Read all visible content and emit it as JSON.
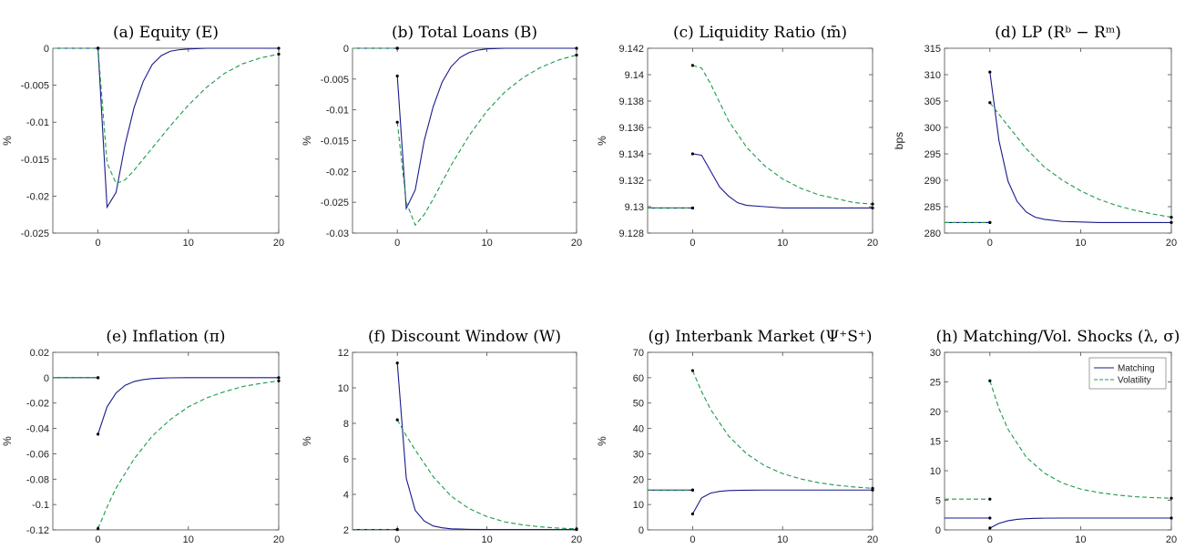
{
  "colors": {
    "matching": "#1a1a8c",
    "volatility": "#1c9a4a",
    "axis": "#4a4a4a",
    "marker": "#000000"
  },
  "legend": {
    "location": "top-right",
    "panel_index": 7
  },
  "chart_data": [
    {
      "type": "line",
      "title": "(a) Equity (E)",
      "ylabel": "%",
      "xlim": [
        -5,
        20
      ],
      "ylim": [
        -0.025,
        0
      ],
      "xticks": [
        0,
        10,
        20
      ],
      "yticks": [
        0,
        -0.005,
        -0.01,
        -0.015,
        -0.02,
        -0.025
      ],
      "ytick_labels": [
        "0",
        "-0.005",
        "-0.01",
        "-0.015",
        "-0.02",
        "-0.025"
      ],
      "series": [
        {
          "name": "Matching",
          "style": "solid",
          "pre": 0,
          "x": [
            0,
            1,
            2,
            3,
            4,
            5,
            6,
            7,
            8,
            9,
            10,
            12,
            14,
            16,
            18,
            20
          ],
          "y": [
            0,
            -0.0215,
            -0.0195,
            -0.013,
            -0.008,
            -0.0045,
            -0.0022,
            -0.001,
            -0.0004,
            -0.0002,
            -0.0001,
            0,
            0,
            0,
            0,
            0
          ]
        },
        {
          "name": "Volatility",
          "style": "dashed",
          "pre": 0,
          "x": [
            0,
            1,
            2,
            3,
            4,
            6,
            8,
            10,
            12,
            14,
            16,
            18,
            20
          ],
          "y": [
            0,
            -0.0155,
            -0.0183,
            -0.0178,
            -0.0165,
            -0.0135,
            -0.0105,
            -0.0077,
            -0.0053,
            -0.0034,
            -0.0021,
            -0.0013,
            -0.0008
          ]
        }
      ]
    },
    {
      "type": "line",
      "title": "(b) Total Loans (B)",
      "ylabel": "%",
      "xlim": [
        -5,
        20
      ],
      "ylim": [
        -0.03,
        0
      ],
      "xticks": [
        0,
        10,
        20
      ],
      "yticks": [
        0,
        -0.005,
        -0.01,
        -0.015,
        -0.02,
        -0.025,
        -0.03
      ],
      "ytick_labels": [
        "0",
        "-0.005",
        "-0.01",
        "-0.015",
        "-0.02",
        "-0.025",
        "-0.03"
      ],
      "series": [
        {
          "name": "Matching",
          "style": "solid",
          "pre": 0,
          "x": [
            0,
            1,
            2,
            3,
            4,
            5,
            6,
            7,
            8,
            9,
            10,
            12,
            14,
            16,
            18,
            20
          ],
          "y": [
            -0.0045,
            -0.026,
            -0.023,
            -0.015,
            -0.0095,
            -0.0055,
            -0.003,
            -0.0015,
            -0.0007,
            -0.0003,
            -0.0001,
            0,
            0,
            0,
            0,
            0
          ]
        },
        {
          "name": "Volatility",
          "style": "dashed",
          "pre": 0,
          "x": [
            0,
            1,
            2,
            3,
            4,
            6,
            8,
            10,
            12,
            14,
            16,
            18,
            20
          ],
          "y": [
            -0.012,
            -0.025,
            -0.0287,
            -0.027,
            -0.0245,
            -0.019,
            -0.0142,
            -0.0102,
            -0.0071,
            -0.0048,
            -0.0031,
            -0.0019,
            -0.0011
          ]
        }
      ]
    },
    {
      "type": "line",
      "title": "(c) Liquidity Ratio (m̄)",
      "ylabel": "%",
      "xlim": [
        -5,
        20
      ],
      "ylim": [
        9.128,
        9.142
      ],
      "xticks": [
        0,
        10,
        20
      ],
      "yticks": [
        9.128,
        9.13,
        9.132,
        9.134,
        9.136,
        9.138,
        9.14,
        9.142
      ],
      "ytick_labels": [
        "9.128",
        "9.13",
        "9.132",
        "9.134",
        "9.136",
        "9.138",
        "9.14",
        "9.142"
      ],
      "series": [
        {
          "name": "Matching",
          "style": "solid",
          "pre": 9.1299,
          "x": [
            0,
            1,
            2,
            3,
            4,
            5,
            6,
            8,
            10,
            12,
            14,
            16,
            18,
            20
          ],
          "y": [
            9.134,
            9.1339,
            9.1327,
            9.1315,
            9.1308,
            9.1303,
            9.1301,
            9.13,
            9.1299,
            9.1299,
            9.1299,
            9.1299,
            9.1299,
            9.1299
          ]
        },
        {
          "name": "Volatility",
          "style": "dashed",
          "pre": 9.1299,
          "x": [
            0,
            1,
            2,
            4,
            6,
            8,
            10,
            12,
            14,
            16,
            18,
            20
          ],
          "y": [
            9.1407,
            9.1405,
            9.1393,
            9.1365,
            9.1345,
            9.1331,
            9.1321,
            9.1314,
            9.1309,
            9.1306,
            9.1303,
            9.1302
          ]
        }
      ]
    },
    {
      "type": "line",
      "title": "(d) LP (Rᵇ − Rᵐ)",
      "ylabel": "bps",
      "xlim": [
        -5,
        20
      ],
      "ylim": [
        280,
        315
      ],
      "xticks": [
        0,
        10,
        20
      ],
      "yticks": [
        280,
        285,
        290,
        295,
        300,
        305,
        310,
        315
      ],
      "ytick_labels": [
        "280",
        "285",
        "290",
        "295",
        "300",
        "305",
        "310",
        "315"
      ],
      "series": [
        {
          "name": "Matching",
          "style": "solid",
          "pre": 282,
          "x": [
            0,
            1,
            2,
            3,
            4,
            5,
            6,
            8,
            10,
            12,
            14,
            16,
            18,
            20
          ],
          "y": [
            310.5,
            297.5,
            289.8,
            286,
            284,
            283,
            282.6,
            282.2,
            282.1,
            282,
            282,
            282,
            282,
            282
          ]
        },
        {
          "name": "Volatility",
          "style": "dashed",
          "pre": 282,
          "x": [
            0,
            1,
            2,
            4,
            6,
            8,
            10,
            12,
            14,
            16,
            18,
            20
          ],
          "y": [
            304.7,
            302.5,
            300.3,
            296,
            292.5,
            290,
            288,
            286.4,
            285.2,
            284.3,
            283.6,
            283
          ]
        }
      ]
    },
    {
      "type": "line",
      "title": "(e) Inflation (π)",
      "ylabel": "%",
      "xlim": [
        -5,
        20
      ],
      "ylim": [
        -0.12,
        0.02
      ],
      "xticks": [
        0,
        10,
        20
      ],
      "yticks": [
        0.02,
        0,
        -0.02,
        -0.04,
        -0.06,
        -0.08,
        -0.1,
        -0.12
      ],
      "ytick_labels": [
        "0.02",
        "0",
        "-0.02",
        "-0.04",
        "-0.06",
        "-0.08",
        "-0.1",
        "-0.12"
      ],
      "series": [
        {
          "name": "Matching",
          "style": "solid",
          "pre": 0,
          "x": [
            0,
            1,
            2,
            3,
            4,
            5,
            6,
            7,
            8,
            10,
            12,
            14,
            16,
            18,
            20
          ],
          "y": [
            -0.0445,
            -0.023,
            -0.012,
            -0.006,
            -0.003,
            -0.0015,
            -0.0007,
            -0.0003,
            -0.0001,
            0,
            0,
            0,
            0,
            0,
            0
          ]
        },
        {
          "name": "Volatility",
          "style": "dashed",
          "pre": 0,
          "x": [
            0,
            1,
            2,
            4,
            6,
            8,
            10,
            12,
            14,
            16,
            18,
            20
          ],
          "y": [
            -0.119,
            -0.102,
            -0.087,
            -0.064,
            -0.046,
            -0.033,
            -0.023,
            -0.016,
            -0.011,
            -0.007,
            -0.0045,
            -0.0025
          ]
        }
      ]
    },
    {
      "type": "line",
      "title": "(f) Discount Window (W)",
      "ylabel": "%",
      "xlim": [
        -5,
        20
      ],
      "ylim": [
        2,
        12
      ],
      "xticks": [
        0,
        10,
        20
      ],
      "yticks": [
        2,
        4,
        6,
        8,
        10,
        12
      ],
      "ytick_labels": [
        "2",
        "4",
        "6",
        "8",
        "10",
        "12"
      ],
      "series": [
        {
          "name": "Matching",
          "style": "solid",
          "pre": 2.02,
          "x": [
            0,
            1,
            2,
            3,
            4,
            5,
            6,
            8,
            10,
            12,
            14,
            16,
            18,
            20
          ],
          "y": [
            11.4,
            4.9,
            3.1,
            2.5,
            2.22,
            2.12,
            2.06,
            2.03,
            2.02,
            2.02,
            2.02,
            2.02,
            2.02,
            2.02
          ]
        },
        {
          "name": "Volatility",
          "style": "dashed",
          "pre": 2.02,
          "x": [
            0,
            1,
            2,
            4,
            6,
            8,
            10,
            12,
            14,
            16,
            18,
            20
          ],
          "y": [
            8.2,
            7.3,
            6.5,
            5.0,
            3.9,
            3.2,
            2.75,
            2.45,
            2.28,
            2.17,
            2.1,
            2.06
          ]
        }
      ]
    },
    {
      "type": "line",
      "title": "(g) Interbank Market (Ψ⁺S⁺)",
      "ylabel": "%",
      "xlim": [
        -5,
        20
      ],
      "ylim": [
        0,
        70
      ],
      "xticks": [
        0,
        10,
        20
      ],
      "yticks": [
        0,
        10,
        20,
        30,
        40,
        50,
        60,
        70
      ],
      "ytick_labels": [
        "0",
        "10",
        "20",
        "30",
        "40",
        "50",
        "60",
        "70"
      ],
      "series": [
        {
          "name": "Matching",
          "style": "solid",
          "pre": 15.7,
          "x": [
            0,
            1,
            2,
            3,
            4,
            5,
            6,
            8,
            10,
            12,
            14,
            16,
            18,
            20
          ],
          "y": [
            6.3,
            12.6,
            14.5,
            15.2,
            15.5,
            15.6,
            15.65,
            15.7,
            15.7,
            15.7,
            15.7,
            15.7,
            15.7,
            15.7
          ]
        },
        {
          "name": "Volatility",
          "style": "dashed",
          "pre": 15.7,
          "x": [
            0,
            1,
            2,
            4,
            6,
            8,
            10,
            12,
            14,
            16,
            18,
            20
          ],
          "y": [
            62.8,
            54.5,
            47.5,
            37,
            30,
            25.3,
            22.2,
            20.1,
            18.6,
            17.6,
            16.9,
            16.4
          ]
        }
      ]
    },
    {
      "type": "line",
      "title": "(h) Matching/Vol. Shocks (λ, σ)",
      "ylabel": "",
      "xlim": [
        -5,
        20
      ],
      "ylim": [
        0,
        30
      ],
      "xticks": [
        0,
        10,
        20
      ],
      "yticks": [
        0,
        5,
        10,
        15,
        20,
        25,
        30
      ],
      "ytick_labels": [
        "0",
        "5",
        "10",
        "15",
        "20",
        "25",
        "30"
      ],
      "series": [
        {
          "name": "Matching",
          "style": "solid",
          "pre": 2.0,
          "x": [
            0,
            1,
            2,
            3,
            4,
            5,
            6,
            8,
            10,
            12,
            14,
            16,
            18,
            20
          ],
          "y": [
            0.3,
            1.1,
            1.55,
            1.78,
            1.9,
            1.95,
            1.98,
            2.0,
            2.0,
            2.0,
            2.0,
            2.0,
            2.0,
            2.0
          ]
        },
        {
          "name": "Volatility",
          "style": "dashed",
          "pre": 5.2,
          "x": [
            0,
            1,
            2,
            4,
            6,
            8,
            10,
            12,
            14,
            16,
            18,
            20
          ],
          "y": [
            25.2,
            20.5,
            17,
            12.3,
            9.6,
            7.9,
            6.9,
            6.3,
            5.9,
            5.6,
            5.45,
            5.35
          ]
        }
      ]
    }
  ]
}
